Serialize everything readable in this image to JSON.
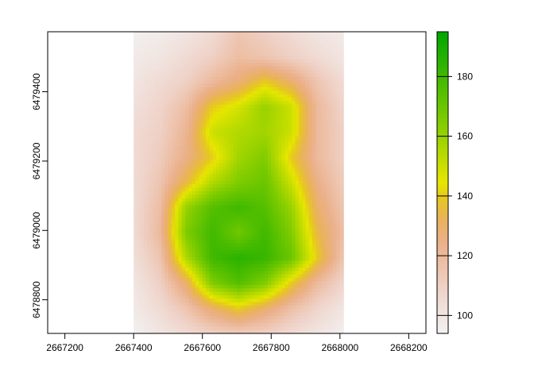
{
  "chart_data": {
    "type": "heatmap",
    "title": "",
    "xlabel": "",
    "ylabel": "",
    "xlim": [
      2667150,
      2668250
    ],
    "ylim": [
      6478703,
      6479573
    ],
    "raster_extent": {
      "x": [
        2667400,
        2668010
      ],
      "y": [
        6478703,
        6479573
      ]
    },
    "x_ticks": [
      "2667200",
      "2667400",
      "2667600",
      "2667800",
      "2668000",
      "2668200"
    ],
    "x_tick_values": [
      2667200,
      2667400,
      2667600,
      2667800,
      2668000,
      2668200
    ],
    "y_ticks": [
      "6478800",
      "6479000",
      "6479200",
      "6479400"
    ],
    "y_tick_values": [
      6478800,
      6479000,
      6479200,
      6479400
    ],
    "value_range": [
      94,
      195
    ],
    "legend": {
      "position": "right",
      "ticks": [
        "100",
        "120",
        "140",
        "160",
        "180"
      ],
      "tick_values": [
        100,
        120,
        140,
        160,
        180
      ]
    },
    "colors": {
      "low": "#F2F2F2",
      "mid_low": "#EBB08A",
      "mid": "#E6E600",
      "high": "#00A600"
    },
    "grid_note_rows_top_to_bottom": true,
    "values": [
      [
        95,
        97,
        100,
        105,
        115,
        110,
        105,
        100,
        98
      ],
      [
        98,
        100,
        105,
        110,
        118,
        115,
        110,
        105,
        100
      ],
      [
        100,
        105,
        110,
        120,
        128,
        140,
        130,
        115,
        105
      ],
      [
        103,
        108,
        118,
        140,
        148,
        160,
        150,
        120,
        108
      ],
      [
        105,
        110,
        122,
        150,
        155,
        158,
        150,
        120,
        110
      ],
      [
        105,
        112,
        125,
        140,
        158,
        165,
        140,
        120,
        110
      ],
      [
        105,
        115,
        135,
        155,
        165,
        170,
        150,
        125,
        112
      ],
      [
        105,
        118,
        160,
        175,
        180,
        175,
        160,
        130,
        115
      ],
      [
        105,
        120,
        165,
        180,
        168,
        180,
        165,
        135,
        118
      ],
      [
        103,
        115,
        155,
        180,
        185,
        182,
        170,
        140,
        115
      ],
      [
        100,
        110,
        130,
        165,
        175,
        165,
        140,
        120,
        108
      ],
      [
        98,
        105,
        115,
        130,
        140,
        130,
        118,
        108,
        100
      ],
      [
        95,
        100,
        105,
        110,
        112,
        110,
        105,
        100,
        96
      ]
    ]
  }
}
